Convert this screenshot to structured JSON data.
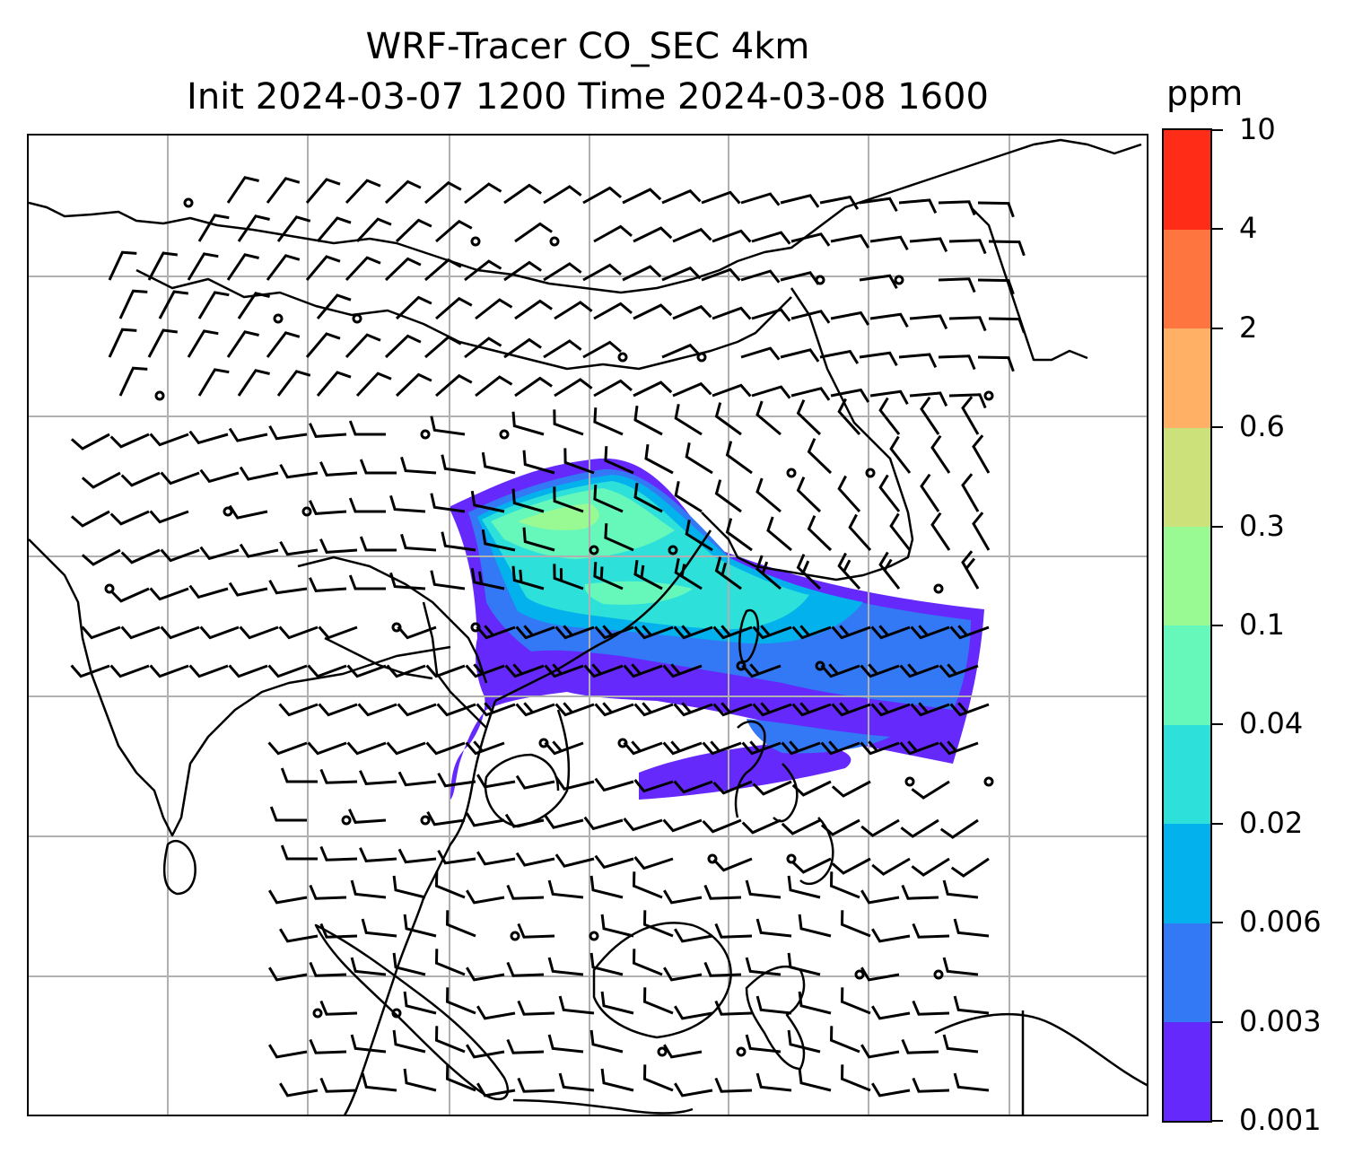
{
  "title": {
    "line1": "WRF-Tracer CO_SEC 4km",
    "line2": "Init 2024-03-07 1200 Time 2024-03-08 1600"
  },
  "colorbar": {
    "unit": "ppm",
    "levels": [
      "0.001",
      "0.003",
      "0.006",
      "0.02",
      "0.04",
      "0.1",
      "0.3",
      "0.6",
      "2",
      "4",
      "10"
    ],
    "colors": [
      "#6629fb",
      "#3378f4",
      "#03b1ec",
      "#2ee0da",
      "#66f7ba",
      "#99fa94",
      "#cce17a",
      "#ffb064",
      "#ff7540",
      "#ff2c17"
    ]
  },
  "map": {
    "gridlines": true,
    "gridline_color": "#b0b0b0",
    "coastline_color": "#000000",
    "features": [
      "coastlines",
      "country-borders",
      "wind-barbs",
      "co-tracer-plume"
    ]
  }
}
